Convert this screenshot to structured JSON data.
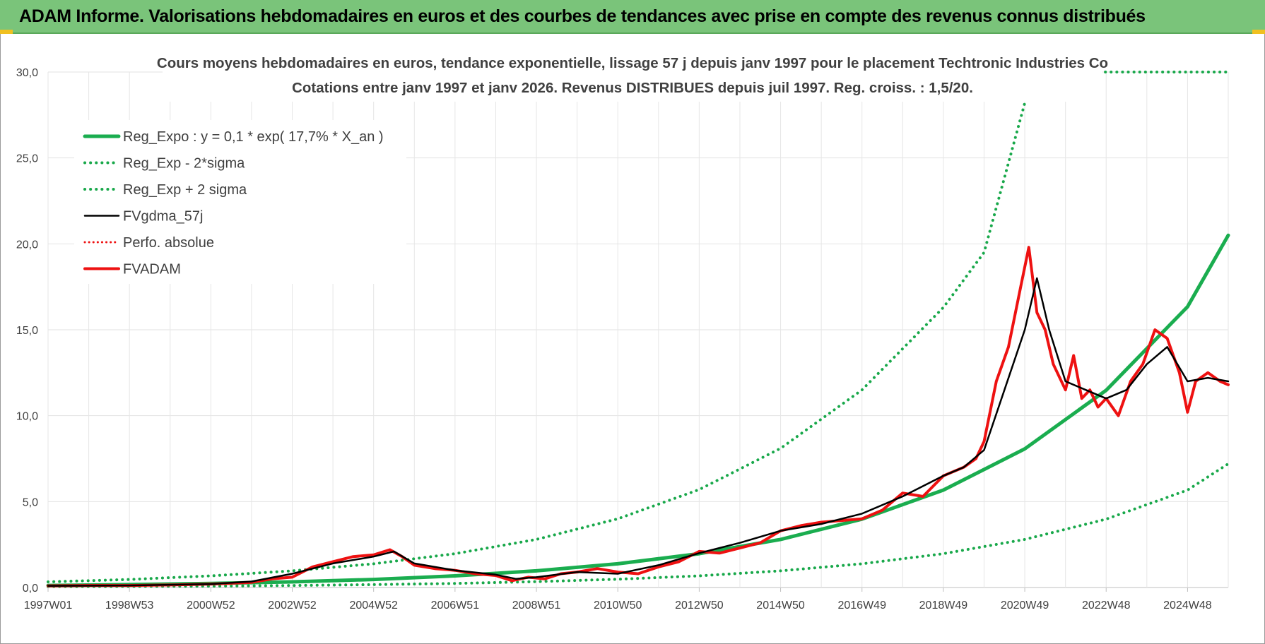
{
  "header": {
    "title": "ADAM Informe. Valorisations hebdomadaires en euros et des courbes de tendances avec prise en compte des revenus connus distribués"
  },
  "colors": {
    "header_bg": "#7ac47a",
    "reg_green": "#1aad4f",
    "dotted_green": "#18a84a",
    "adam_red": "#ee1111",
    "gdma_black": "#000000"
  },
  "chart_data": {
    "type": "line",
    "title": "Cours moyens hebdomadaires en euros, tendance exponentielle, lissage 57 j depuis janv 1997 pour le placement Techtronic Industries Co",
    "subtitle": "Cotations entre janv 1997 et janv 2026. Revenus DISTRIBUES depuis juil 1997. Reg. croiss. : 1,5/20.",
    "xlabel": "",
    "ylabel": "",
    "ylim": [
      0,
      30
    ],
    "y_ticks": [
      "0,0",
      "5,0",
      "10,0",
      "15,0",
      "20,0",
      "25,0",
      "30,0"
    ],
    "x_ticks": [
      "1997W01",
      "1998W53",
      "2000W52",
      "2002W52",
      "2004W52",
      "2006W51",
      "2008W51",
      "2010W50",
      "2012W50",
      "2014W50",
      "2016W49",
      "2018W49",
      "2020W49",
      "2022W48",
      "2024W48"
    ],
    "x_range_years": [
      1997.0,
      2026.0
    ],
    "grid": true,
    "legend_position": "top-left",
    "series": [
      {
        "name": "Reg_Expo : y = 0,1 * exp( 17,7% *  X_an )",
        "style": "solid-green",
        "x": [
          1997,
          1999,
          2001,
          2003,
          2005,
          2007,
          2009,
          2011,
          2013,
          2015,
          2017,
          2019,
          2021,
          2023,
          2025,
          2026
        ],
        "values": [
          0.12,
          0.17,
          0.24,
          0.33,
          0.47,
          0.68,
          0.97,
          1.38,
          1.97,
          2.8,
          3.98,
          5.67,
          8.07,
          11.48,
          16.34,
          20.5
        ]
      },
      {
        "name": "Reg_Exp - 2*sigma",
        "style": "dotted-green",
        "x": [
          1997,
          1999,
          2001,
          2003,
          2005,
          2007,
          2009,
          2011,
          2013,
          2015,
          2017,
          2019,
          2021,
          2023,
          2025,
          2026
        ],
        "values": [
          0.05,
          0.06,
          0.08,
          0.12,
          0.17,
          0.24,
          0.34,
          0.48,
          0.68,
          0.97,
          1.38,
          1.97,
          2.8,
          3.98,
          5.67,
          7.2
        ]
      },
      {
        "name": "Reg_Exp + 2 sigma",
        "style": "dotted-green",
        "x": [
          1997,
          1999,
          2001,
          2003,
          2005,
          2007,
          2009,
          2011,
          2013,
          2015,
          2017,
          2019,
          2020,
          2021
        ],
        "values": [
          0.33,
          0.47,
          0.68,
          0.97,
          1.38,
          1.97,
          2.8,
          4.0,
          5.7,
          8.1,
          11.5,
          16.3,
          19.5,
          28.2
        ]
      },
      {
        "name": "FVgdma_57j",
        "style": "solid-black",
        "x": [
          1997,
          1999,
          2001,
          2002,
          2003,
          2004,
          2005,
          2005.5,
          2006,
          2007,
          2008,
          2008.5,
          2009,
          2010,
          2011,
          2012,
          2013,
          2014,
          2015,
          2016,
          2017,
          2018,
          2019,
          2019.5,
          2020,
          2020.5,
          2021,
          2021.3,
          2021.6,
          2022,
          2022.5,
          2023,
          2023.5,
          2024,
          2024.5,
          2025,
          2025.5,
          2026
        ],
        "values": [
          0.1,
          0.12,
          0.2,
          0.35,
          0.8,
          1.4,
          1.8,
          2.1,
          1.4,
          1.0,
          0.75,
          0.5,
          0.6,
          0.9,
          0.8,
          1.3,
          2.0,
          2.6,
          3.3,
          3.7,
          4.3,
          5.3,
          6.5,
          7.0,
          8.0,
          11.5,
          15.0,
          18.0,
          15.0,
          12.0,
          11.5,
          11.0,
          11.5,
          13.0,
          14.0,
          12.0,
          12.2,
          12.0
        ]
      },
      {
        "name": "Perfo. absolue",
        "style": "dotted-red",
        "x": [],
        "values": []
      },
      {
        "name": "FVADAM",
        "style": "solid-red",
        "x": [
          1997,
          1998,
          1999,
          2000,
          2001,
          2002,
          2002.5,
          2003,
          2003.5,
          2004,
          2004.5,
          2005,
          2005.4,
          2005.7,
          2006,
          2006.5,
          2007,
          2007.5,
          2008,
          2008.4,
          2008.8,
          2009.2,
          2009.6,
          2010,
          2010.5,
          2011,
          2011.5,
          2012,
          2012.5,
          2013,
          2013.5,
          2014,
          2014.5,
          2015,
          2015.5,
          2016,
          2016.5,
          2017,
          2017.5,
          2018,
          2018.5,
          2019,
          2019.5,
          2019.8,
          2020,
          2020.3,
          2020.6,
          2020.9,
          2021.1,
          2021.3,
          2021.5,
          2021.7,
          2022,
          2022.2,
          2022.4,
          2022.6,
          2022.8,
          2023,
          2023.3,
          2023.6,
          2023.9,
          2024.2,
          2024.5,
          2024.8,
          2025,
          2025.2,
          2025.5,
          2025.8,
          2026
        ],
        "values": [
          0.1,
          0.12,
          0.12,
          0.15,
          0.2,
          0.3,
          0.5,
          0.6,
          1.2,
          1.5,
          1.8,
          1.9,
          2.2,
          1.8,
          1.3,
          1.1,
          1.0,
          0.8,
          0.7,
          0.4,
          0.6,
          0.5,
          0.8,
          0.9,
          1.1,
          0.9,
          0.8,
          1.2,
          1.5,
          2.1,
          2.0,
          2.3,
          2.6,
          3.3,
          3.6,
          3.8,
          3.9,
          4.0,
          4.5,
          5.5,
          5.3,
          6.5,
          7.0,
          7.5,
          8.5,
          12.0,
          14.0,
          17.5,
          19.8,
          16.0,
          15.0,
          13.0,
          11.5,
          13.5,
          11.0,
          11.5,
          10.5,
          11.0,
          10.0,
          12.0,
          13.0,
          15.0,
          14.5,
          12.5,
          10.2,
          12.0,
          12.5,
          12.0,
          11.8
        ]
      }
    ]
  }
}
